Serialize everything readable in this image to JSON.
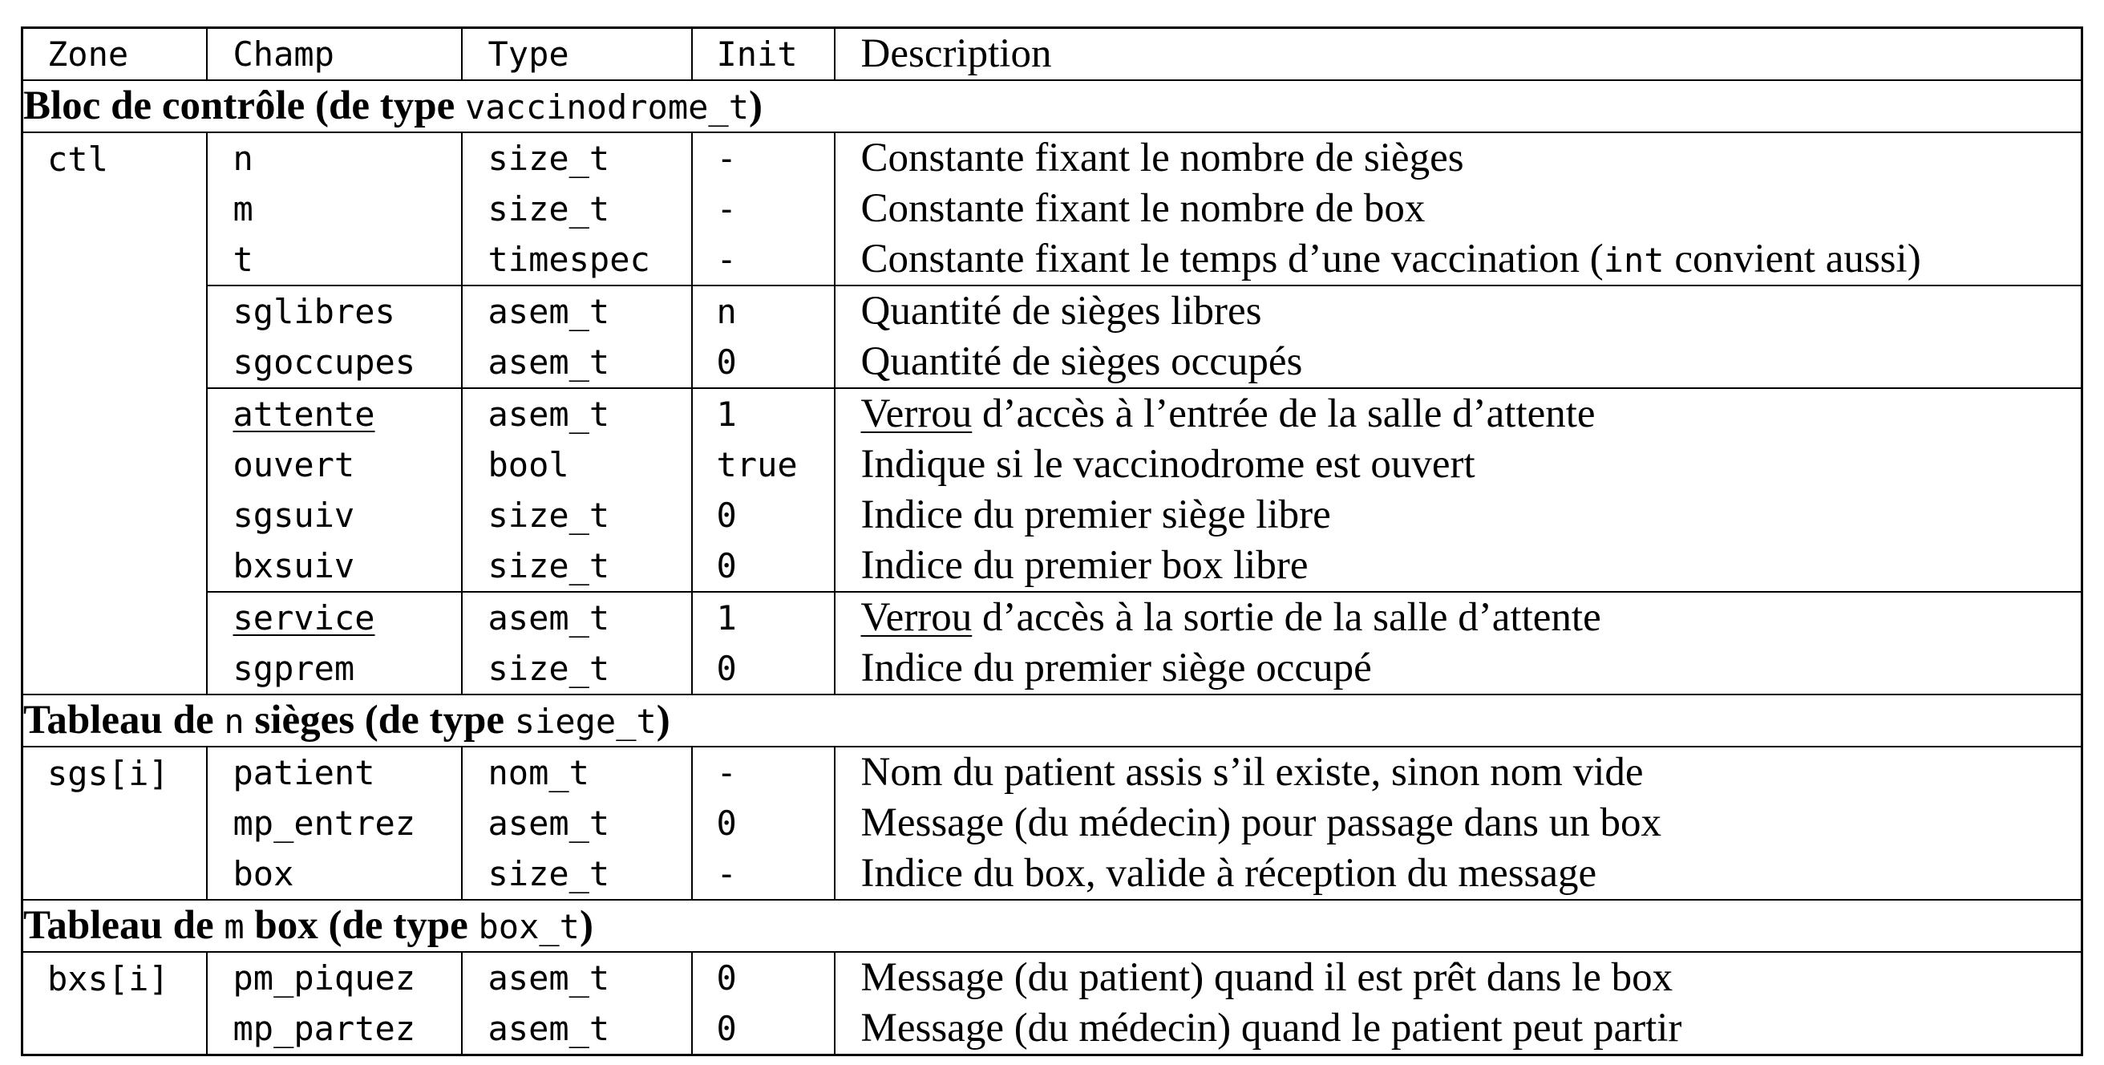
{
  "headers": {
    "zone": "Zone",
    "champ": "Champ",
    "type": "Type",
    "init": "Init",
    "description": "Description"
  },
  "sections": [
    {
      "title_prefix": "Bloc de contrôle (de type ",
      "title_code": "vaccinodrome_t",
      "title_suffix": ")",
      "zone": "ctl",
      "groups": [
        [
          {
            "champ": "n",
            "type": "size_t",
            "init": "-",
            "desc": "Constante fixant le nombre de sièges"
          },
          {
            "champ": "m",
            "type": "size_t",
            "init": "-",
            "desc": "Constante fixant le nombre de box"
          },
          {
            "champ": "t",
            "type": "timespec",
            "init": "-",
            "desc_a": "Constante fixant le temps d’une vaccination (",
            "desc_code": "int",
            "desc_b": " convient aussi)"
          }
        ],
        [
          {
            "champ": "sglibres",
            "type": "asem_t",
            "init": "n",
            "desc": "Quantité de sièges libres"
          },
          {
            "champ": "sgoccupes",
            "type": "asem_t",
            "init": "0",
            "desc": "Quantité de sièges occupés"
          }
        ],
        [
          {
            "champ": "attente",
            "type": "asem_t",
            "init": "1",
            "desc_ul": "Verrou",
            "desc_rest": " d’accès à l’entrée de la salle d’attente"
          },
          {
            "champ": "ouvert",
            "type": "bool",
            "init": "true",
            "desc": "Indique si le vaccinodrome est ouvert"
          },
          {
            "champ": "sgsuiv",
            "type": "size_t",
            "init": "0",
            "desc": "Indice du premier siège libre"
          },
          {
            "champ": "bxsuiv",
            "type": "size_t",
            "init": "0",
            "desc": "Indice du premier box libre"
          }
        ],
        [
          {
            "champ": "service",
            "type": "asem_t",
            "init": "1",
            "desc_ul": "Verrou",
            "desc_rest": " d’accès à la sortie de la salle d’attente"
          },
          {
            "champ": "sgprem",
            "type": "size_t",
            "init": "0",
            "desc": "Indice du premier siège occupé"
          }
        ]
      ]
    },
    {
      "title_prefix": "Tableau de ",
      "title_var": "n",
      "title_mid": " sièges (de type ",
      "title_code": "siege_t",
      "title_suffix": ")",
      "zone": "sgs[i]",
      "rows": [
        {
          "champ": "patient",
          "type": "nom_t",
          "init": "-",
          "desc": "Nom du patient assis s’il existe, sinon nom vide"
        },
        {
          "champ": "mp_entrez",
          "type": "asem_t",
          "init": "0",
          "desc": "Message (du médecin) pour passage dans un box"
        },
        {
          "champ": "box",
          "type": "size_t",
          "init": "-",
          "desc": "Indice du box, valide à réception du message"
        }
      ]
    },
    {
      "title_prefix": "Tableau de ",
      "title_var": "m",
      "title_mid": " box (de type ",
      "title_code": "box_t",
      "title_suffix": ")",
      "zone": "bxs[i]",
      "rows": [
        {
          "champ": "pm_piquez",
          "type": "asem_t",
          "init": "0",
          "desc": "Message (du patient) quand il est prêt dans le box"
        },
        {
          "champ": "mp_partez",
          "type": "asem_t",
          "init": "0",
          "desc": "Message (du médecin) quand le patient peut partir"
        }
      ]
    }
  ]
}
